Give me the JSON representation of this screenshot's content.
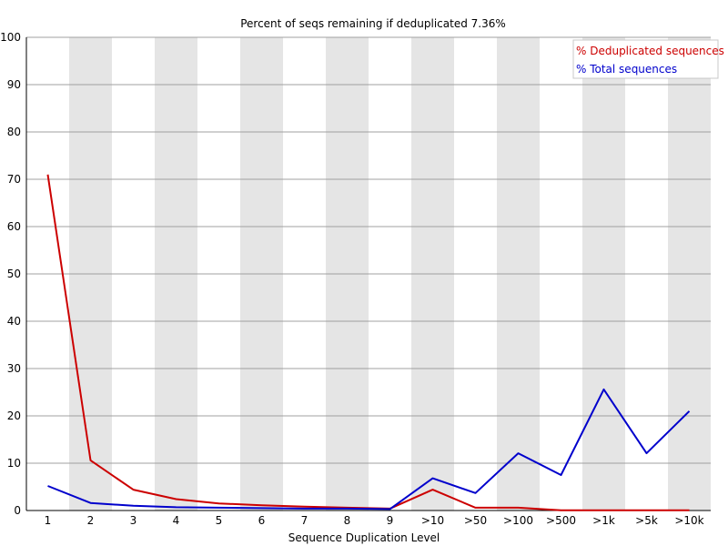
{
  "chart_data": {
    "type": "line",
    "title": "Percent of seqs remaining if deduplicated 7.36%",
    "xlabel": "Sequence Duplication Level",
    "ylabel": "",
    "ylim": [
      0,
      100
    ],
    "yticks": [
      0,
      10,
      20,
      30,
      40,
      50,
      60,
      70,
      80,
      90,
      100
    ],
    "categories": [
      "1",
      "2",
      "3",
      "4",
      "5",
      "6",
      "7",
      "8",
      "9",
      ">10",
      ">50",
      ">100",
      ">500",
      ">1k",
      ">5k",
      ">10k"
    ],
    "grid": "horizontal",
    "legend_position": "top-right",
    "series": [
      {
        "name": "% Deduplicated sequences",
        "color": "#cc0000",
        "values": [
          71.0,
          10.6,
          4.4,
          2.4,
          1.5,
          1.1,
          0.8,
          0.6,
          0.4,
          4.4,
          0.6,
          0.6,
          0.05,
          0.05,
          0.05,
          0.05
        ]
      },
      {
        "name": "% Total sequences",
        "color": "#0000cc",
        "values": [
          5.2,
          1.6,
          1.0,
          0.7,
          0.6,
          0.5,
          0.4,
          0.4,
          0.3,
          6.8,
          3.7,
          12.1,
          7.5,
          25.6,
          12.1,
          21.0
        ]
      }
    ]
  }
}
